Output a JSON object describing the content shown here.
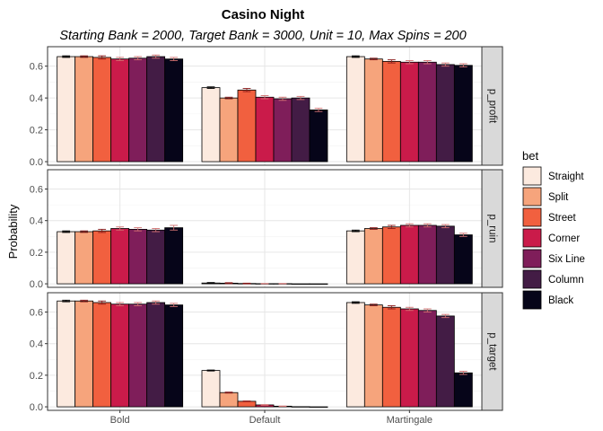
{
  "chart_data": {
    "type": "bar",
    "title": "Casino Night",
    "subtitle": "Starting Bank = 2000, Target Bank = 3000, Unit = 10, Max Spins = 200",
    "xlabel": "",
    "ylabel": "Probability",
    "categories": [
      "Bold",
      "Default",
      "Martingale"
    ],
    "ylim": [
      0,
      0.7
    ],
    "yticks": [
      0.0,
      0.2,
      0.4,
      0.6
    ],
    "ytick_labels": [
      "0.0",
      "0.2",
      "0.4",
      "0.6"
    ],
    "grid": true,
    "legend": {
      "title": "bet",
      "position": "right",
      "entries": [
        "Straight",
        "Split",
        "Street",
        "Corner",
        "Six Line",
        "Column",
        "Black"
      ]
    },
    "colors": [
      "#FCEADF",
      "#F6A47C",
      "#F1603F",
      "#CA1B4A",
      "#7F1E5A",
      "#431C45",
      "#060519"
    ],
    "facets": [
      {
        "label": "p_profit",
        "series": [
          {
            "name": "Straight",
            "values": [
              0.66,
              0.465,
              0.66
            ],
            "err": [
              0.005,
              0.005,
              0.005
            ]
          },
          {
            "name": "Split",
            "values": [
              0.66,
              0.4,
              0.645
            ],
            "err": [
              0.005,
              0.005,
              0.005
            ]
          },
          {
            "name": "Street",
            "values": [
              0.655,
              0.45,
              0.63
            ],
            "err": [
              0.01,
              0.01,
              0.01
            ]
          },
          {
            "name": "Corner",
            "values": [
              0.645,
              0.405,
              0.625
            ],
            "err": [
              0.01,
              0.01,
              0.01
            ]
          },
          {
            "name": "Six Line",
            "values": [
              0.65,
              0.395,
              0.625
            ],
            "err": [
              0.01,
              0.01,
              0.01
            ]
          },
          {
            "name": "Column",
            "values": [
              0.66,
              0.4,
              0.61
            ],
            "err": [
              0.01,
              0.01,
              0.01
            ]
          },
          {
            "name": "Black",
            "values": [
              0.645,
              0.325,
              0.605
            ],
            "err": [
              0.01,
              0.01,
              0.01
            ]
          }
        ]
      },
      {
        "label": "p_ruin",
        "series": [
          {
            "name": "Straight",
            "values": [
              0.33,
              0.005,
              0.335
            ],
            "err": [
              0.005,
              0.003,
              0.005
            ]
          },
          {
            "name": "Split",
            "values": [
              0.33,
              0.004,
              0.35
            ],
            "err": [
              0.005,
              0.003,
              0.005
            ]
          },
          {
            "name": "Street",
            "values": [
              0.335,
              0.002,
              0.36
            ],
            "err": [
              0.01,
              0.002,
              0.01
            ]
          },
          {
            "name": "Corner",
            "values": [
              0.35,
              0.001,
              0.37
            ],
            "err": [
              0.01,
              0.001,
              0.01
            ]
          },
          {
            "name": "Six Line",
            "values": [
              0.345,
              0.001,
              0.37
            ],
            "err": [
              0.01,
              0.001,
              0.01
            ]
          },
          {
            "name": "Column",
            "values": [
              0.34,
              0.0,
              0.365
            ],
            "err": [
              0.01,
              0.0,
              0.01
            ]
          },
          {
            "name": "Black",
            "values": [
              0.355,
              0.0,
              0.31
            ],
            "err": [
              0.015,
              0.0,
              0.01
            ]
          }
        ]
      },
      {
        "label": "p_target",
        "series": [
          {
            "name": "Straight",
            "values": [
              0.67,
              0.23,
              0.66
            ],
            "err": [
              0.005,
              0.003,
              0.005
            ]
          },
          {
            "name": "Split",
            "values": [
              0.67,
              0.09,
              0.645
            ],
            "err": [
              0.005,
              0.003,
              0.005
            ]
          },
          {
            "name": "Street",
            "values": [
              0.66,
              0.035,
              0.63
            ],
            "err": [
              0.01,
              0.002,
              0.01
            ]
          },
          {
            "name": "Corner",
            "values": [
              0.65,
              0.012,
              0.62
            ],
            "err": [
              0.01,
              0.002,
              0.01
            ]
          },
          {
            "name": "Six Line",
            "values": [
              0.65,
              0.004,
              0.61
            ],
            "err": [
              0.01,
              0.001,
              0.01
            ]
          },
          {
            "name": "Column",
            "values": [
              0.66,
              0.001,
              0.575
            ],
            "err": [
              0.01,
              0.0,
              0.01
            ]
          },
          {
            "name": "Black",
            "values": [
              0.645,
              0.0,
              0.215
            ],
            "err": [
              0.01,
              0.0,
              0.01
            ]
          }
        ]
      }
    ]
  }
}
